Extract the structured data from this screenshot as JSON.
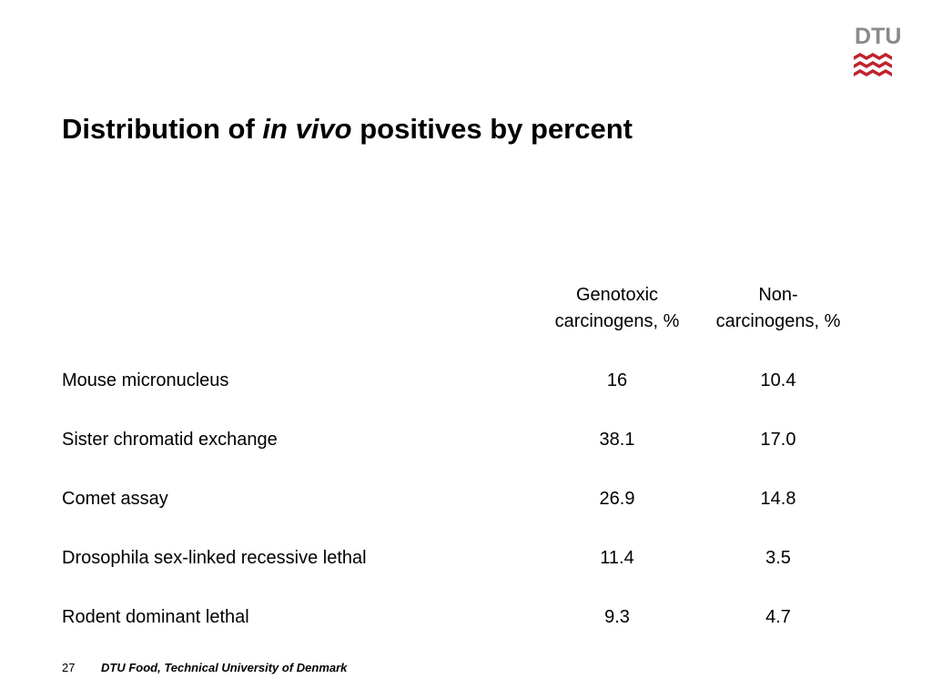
{
  "logo": {
    "text": "DTU",
    "brand_color": "#c0232c",
    "text_color": "#8a8a8a"
  },
  "slide": {
    "title_before": "Distribution of ",
    "title_italic": "in vivo",
    "title_after": " positives by percent"
  },
  "table": {
    "header_1_line1": "Genotoxic",
    "header_1_line2": "carcinogens, %",
    "header_2_line1": "Non-",
    "header_2_line2": "carcinogens, %",
    "rows": [
      {
        "label": "Mouse micronucleus",
        "genotoxic": "16",
        "non_carcinogens": "10.4"
      },
      {
        "label": "Sister chromatid exchange",
        "genotoxic": "38.1",
        "non_carcinogens": "17.0"
      },
      {
        "label": "Comet assay",
        "genotoxic": "26.9",
        "non_carcinogens": "14.8"
      },
      {
        "label": "Drosophila sex-linked recessive lethal",
        "genotoxic": "11.4",
        "non_carcinogens": "3.5"
      },
      {
        "label": "Rodent dominant lethal",
        "genotoxic": "9.3",
        "non_carcinogens": "4.7"
      }
    ]
  },
  "footer": {
    "page_number": "27",
    "text": "DTU Food, Technical University of Denmark"
  }
}
